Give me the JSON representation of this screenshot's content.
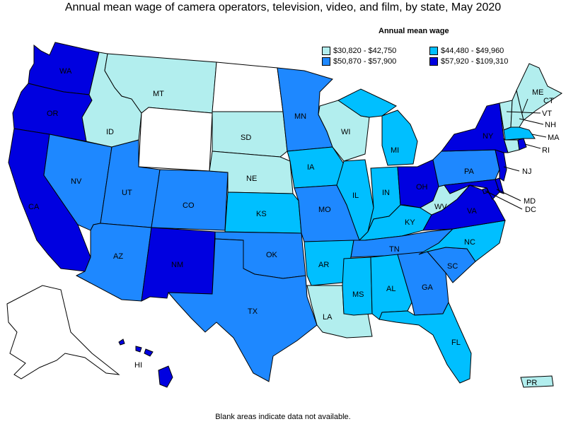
{
  "title": "Annual mean wage of camera operators, television, video, and film, by state, May 2020",
  "legend": {
    "title": "Annual mean wage",
    "items": [
      {
        "id": "c1",
        "label": "$30,820 - $42,750",
        "color": "#b2eeee"
      },
      {
        "id": "c2",
        "label": "$44,480 - $49,960",
        "color": "#00bfff"
      },
      {
        "id": "c3",
        "label": "$50,870 - $57,900",
        "color": "#1e88ff"
      },
      {
        "id": "c4",
        "label": "$57,920 - $109,310",
        "color": "#0000e0"
      }
    ]
  },
  "no_data_color": "#ffffff",
  "states": {
    "WA": "c4",
    "OR": "c4",
    "CA": "c4",
    "NV": "c3",
    "ID": "c1",
    "MT": "c1",
    "WY": "none",
    "UT": "c3",
    "AZ": "c3",
    "CO": "c3",
    "NM": "c4",
    "ND": "none",
    "SD": "c1",
    "NE": "c1",
    "KS": "c2",
    "OK": "c3",
    "TX": "c3",
    "MN": "c3",
    "IA": "c2",
    "MO": "c3",
    "AR": "c2",
    "LA": "c1",
    "WI": "c1",
    "IL": "c2",
    "MI": "c2",
    "IN": "c2",
    "OH": "c4",
    "KY": "c2",
    "TN": "c3",
    "MS": "c2",
    "AL": "c2",
    "GA": "c3",
    "FL": "c2",
    "SC": "c3",
    "NC": "c2",
    "VA": "c4",
    "WV": "c1",
    "PA": "c3",
    "NY": "c4",
    "ME": "c1",
    "VT": "c1",
    "NH": "c1",
    "MA": "c2",
    "RI": "c4",
    "CT": "c1",
    "NJ": "c4",
    "DE": "c4",
    "MD": "c4",
    "DC": "c4",
    "AK": "none",
    "HI": "c4",
    "PR": "c1"
  },
  "state_labels": [
    "WA",
    "OR",
    "CA",
    "NV",
    "ID",
    "MT",
    "UT",
    "AZ",
    "CO",
    "NM",
    "SD",
    "NE",
    "KS",
    "OK",
    "TX",
    "MN",
    "IA",
    "MO",
    "AR",
    "LA",
    "WI",
    "IL",
    "MI",
    "IN",
    "OH",
    "KY",
    "TN",
    "MS",
    "AL",
    "GA",
    "FL",
    "SC",
    "NC",
    "VA",
    "WV",
    "PA",
    "NY",
    "ME",
    "VT",
    "NH",
    "MA",
    "RI",
    "NJ",
    "MD",
    "DC",
    "CT",
    "HI",
    "PR"
  ],
  "footnote": "Blank areas indicate data not available."
}
